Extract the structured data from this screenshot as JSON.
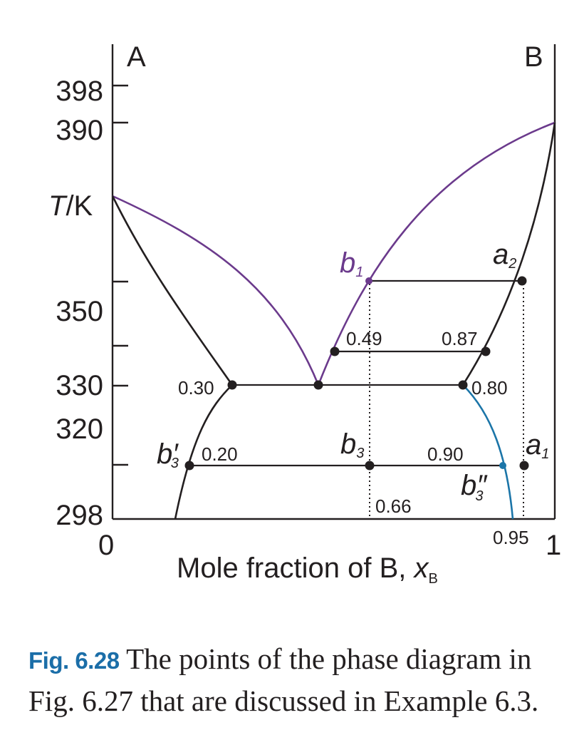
{
  "axes": {
    "left_label": "A",
    "right_label": "B",
    "y_label_T": "T",
    "y_label_unit": "/K",
    "x_min_label": "0",
    "x_max_label": "1",
    "x_title_text": "Mole fraction of B, ",
    "x_title_var": "x",
    "x_title_sub": "B",
    "y_ticks": [
      "398",
      "390",
      "350",
      "330",
      "320",
      "298"
    ]
  },
  "points": {
    "b1": {
      "letter": "b",
      "sub": "1"
    },
    "a2": {
      "letter": "a",
      "sub": "2"
    },
    "a1": {
      "letter": "a",
      "sub": "1"
    },
    "b3": {
      "letter": "b",
      "sub": "3"
    },
    "b3p": {
      "letter": "b",
      "mark": "′",
      "sub": "3"
    },
    "b3pp": {
      "letter": "b",
      "mark": "″",
      "sub": "3"
    }
  },
  "values": {
    "v049": "0.49",
    "v087": "0.87",
    "v030": "0.30",
    "v080": "0.80",
    "v020": "0.20",
    "v090": "0.90",
    "v066": "0.66",
    "v095": "0.95"
  },
  "caption": {
    "label": "Fig. 6.28",
    "text": "The points of the phase diagram in Fig. 6.27 that are discussed in Example 6.3."
  },
  "colors": {
    "purple": "#6b3a8c",
    "blue": "#1b75a8",
    "caption_label": "#1b6ea8"
  }
}
